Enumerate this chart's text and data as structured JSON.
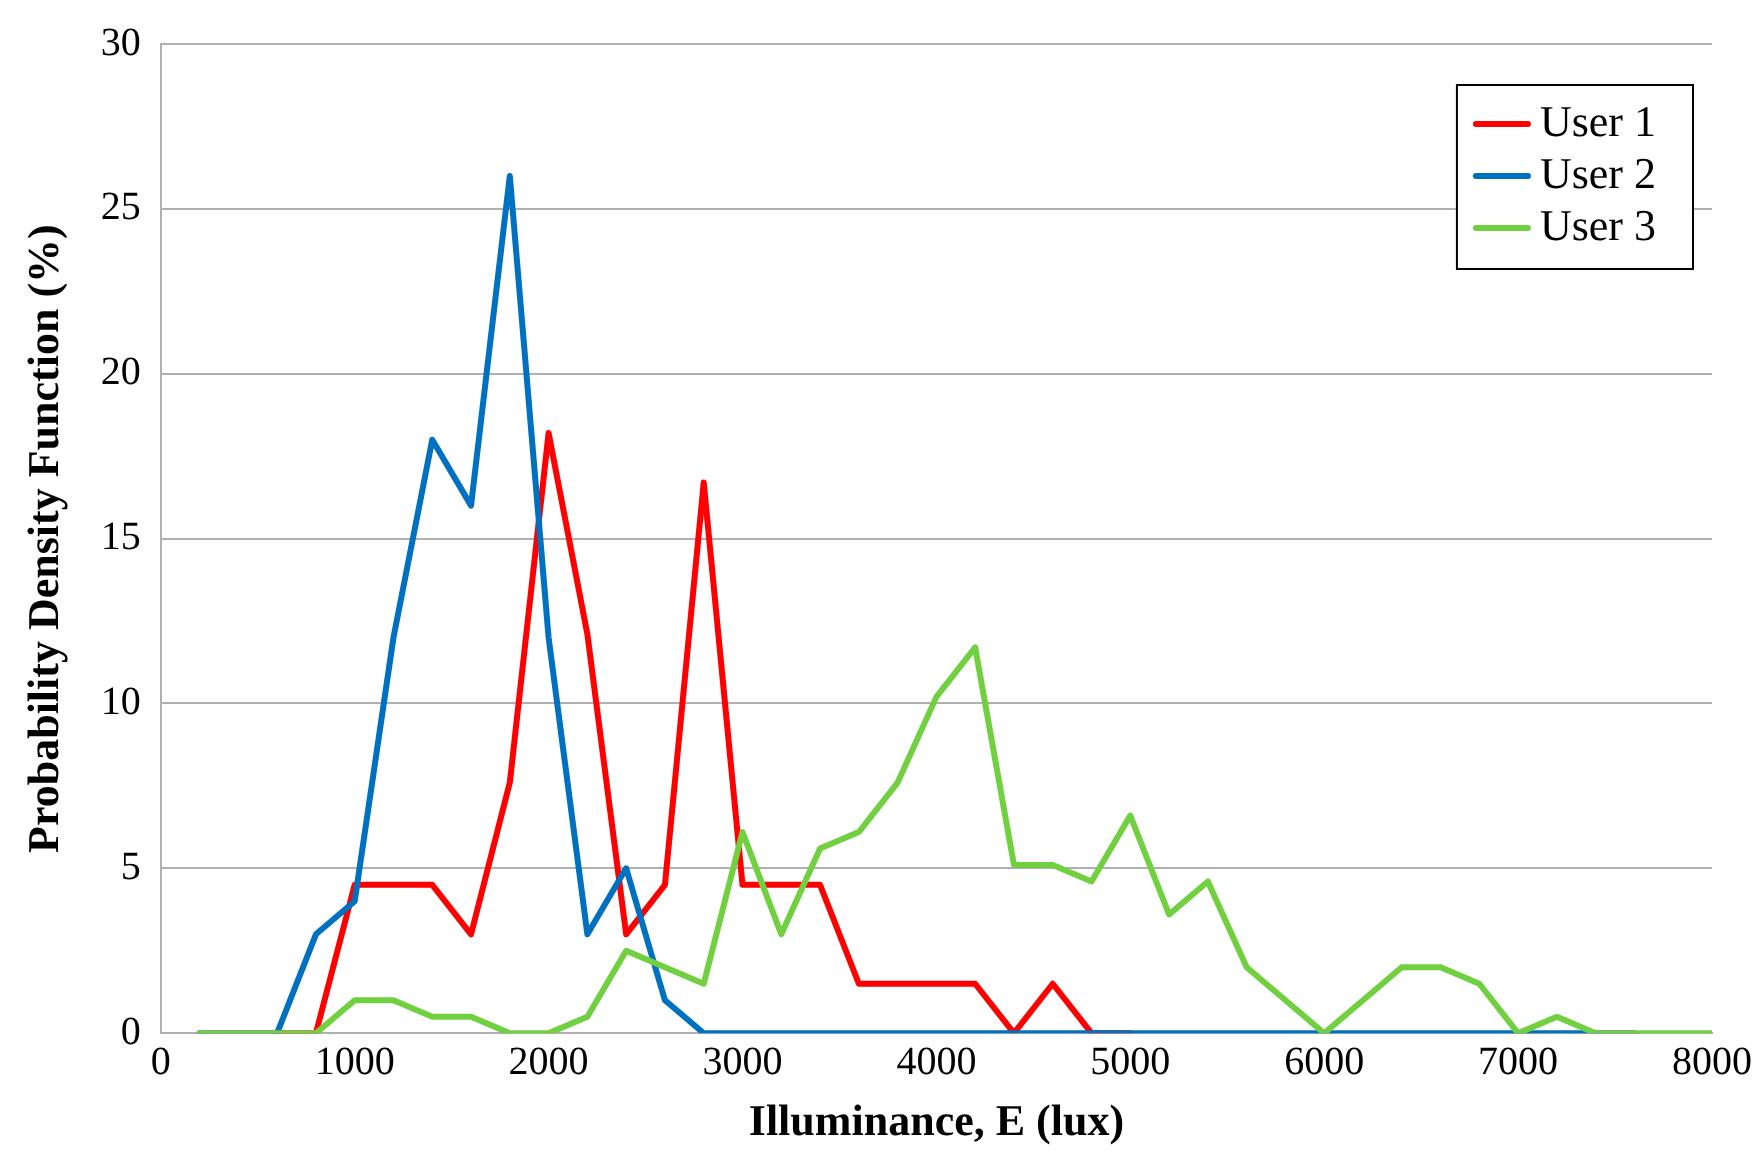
{
  "chart_data": {
    "type": "line",
    "xlabel": "Illuminance, E (lux)",
    "ylabel": "Probability Density Function (%)",
    "x": [
      200,
      400,
      600,
      800,
      1000,
      1200,
      1400,
      1600,
      1800,
      2000,
      2200,
      2400,
      2600,
      2800,
      3000,
      3200,
      3400,
      3600,
      3800,
      4000,
      4200,
      4400,
      4600,
      4800,
      5000,
      5200,
      5400,
      5600,
      5800,
      6000,
      6200,
      6400,
      6600,
      6800,
      7000,
      7200,
      7400,
      7600,
      7800,
      8000
    ],
    "series": [
      {
        "name": "User 1",
        "color": "#ff0000",
        "values": [
          null,
          null,
          0,
          0,
          4.5,
          4.5,
          4.5,
          3,
          7.6,
          18.2,
          12.1,
          3,
          4.5,
          16.7,
          4.5,
          4.5,
          4.5,
          1.5,
          1.5,
          1.5,
          1.5,
          0,
          1.5,
          0,
          0,
          null,
          null,
          null,
          null,
          null,
          null,
          null,
          null,
          null,
          null,
          null,
          null,
          null,
          null,
          null
        ]
      },
      {
        "name": "User 2",
        "color": "#0070c0",
        "values": [
          0,
          0,
          0,
          3,
          4,
          12,
          18,
          16,
          26,
          12,
          3,
          5,
          1,
          0,
          0,
          0,
          0,
          0,
          0,
          0,
          0,
          0,
          0,
          0,
          0,
          0,
          0,
          0,
          0,
          0,
          0,
          0,
          0,
          0,
          0,
          0,
          0,
          0,
          null,
          null
        ]
      },
      {
        "name": "User 3",
        "color": "#70d040",
        "values": [
          0,
          0,
          0,
          0,
          1,
          1,
          0.5,
          0.5,
          0,
          0,
          0.5,
          2.5,
          2,
          1.5,
          6.1,
          3,
          5.6,
          6.1,
          7.6,
          10.2,
          11.7,
          5.1,
          5.1,
          4.6,
          6.6,
          3.6,
          4.6,
          2,
          1,
          0,
          1,
          2,
          2,
          1.5,
          0,
          0.5,
          0,
          0,
          0,
          0
        ]
      }
    ],
    "xlim": [
      0,
      8000
    ],
    "xticks": [
      0,
      1000,
      2000,
      3000,
      4000,
      5000,
      6000,
      7000,
      8000
    ],
    "ylim": [
      0,
      30
    ],
    "yticks": [
      0,
      5,
      10,
      15,
      20,
      25,
      30
    ],
    "grid": "y",
    "legend": "top right",
    "marker": "none",
    "line_style": "solid"
  }
}
